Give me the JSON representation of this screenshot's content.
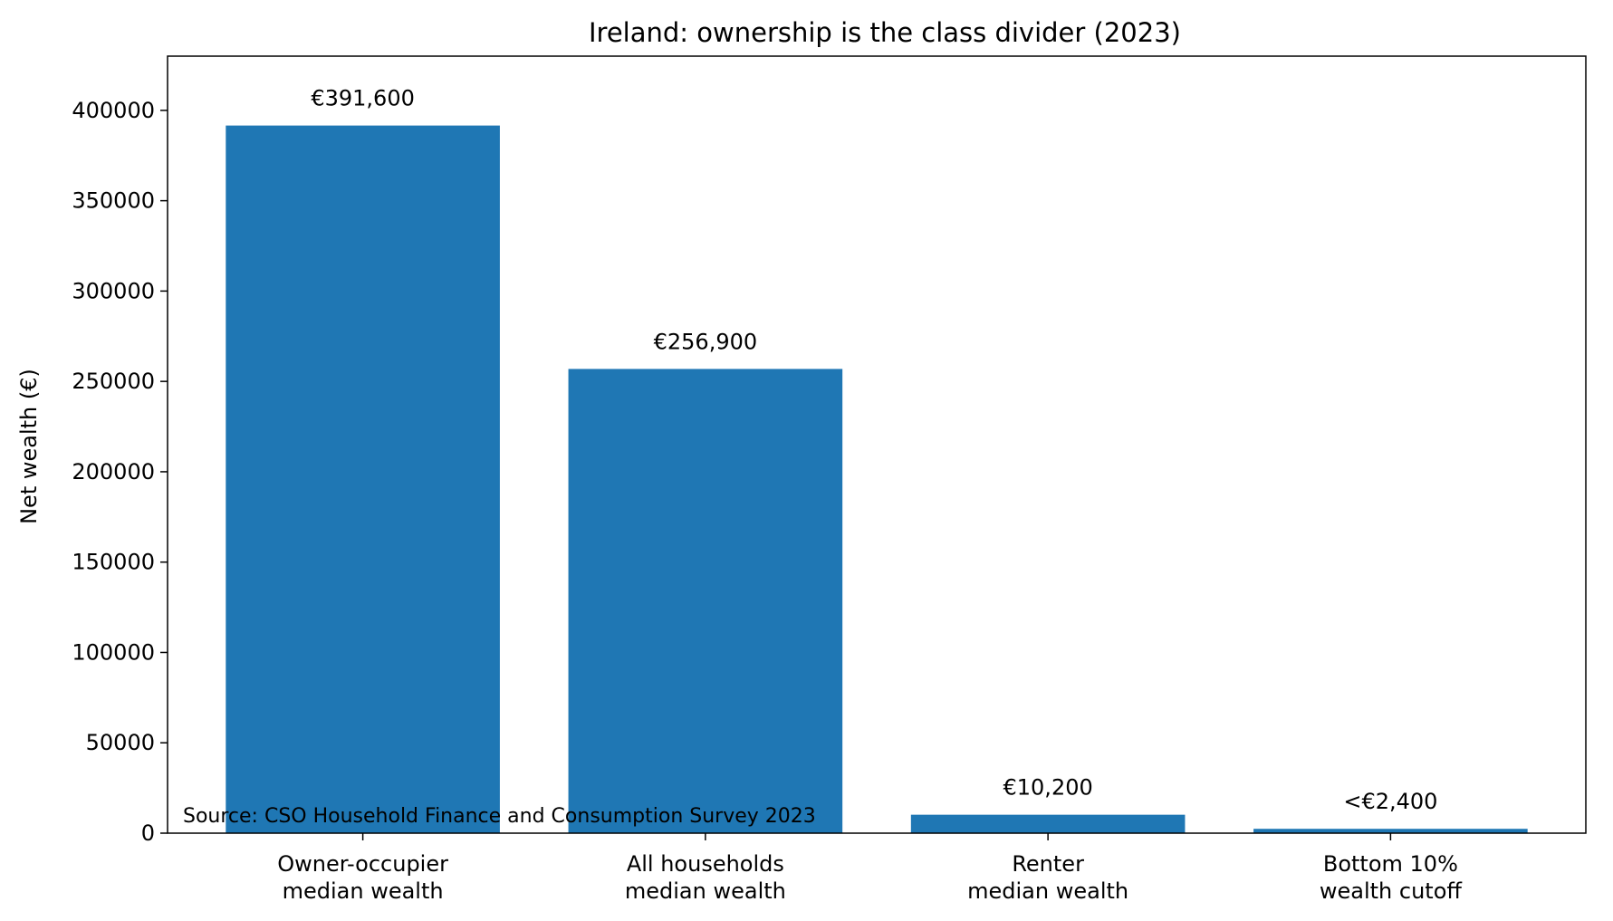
{
  "chart_data": {
    "type": "bar",
    "title": "Ireland: ownership is the class divider (2023)",
    "ylabel": "Net wealth (€)",
    "xlabel": "",
    "ylim": [
      0,
      430000
    ],
    "yticks": [
      0,
      50000,
      100000,
      150000,
      200000,
      250000,
      300000,
      350000,
      400000
    ],
    "categories": [
      [
        "Owner-occupier",
        "median wealth"
      ],
      [
        "All households",
        "median wealth"
      ],
      [
        "Renter",
        "median wealth"
      ],
      [
        "Bottom 10%",
        "wealth cutoff"
      ]
    ],
    "values": [
      391600,
      256900,
      10200,
      2400
    ],
    "data_labels": [
      "€391,600",
      "€256,900",
      "€10,200",
      "<€2,400"
    ],
    "bar_color": "#1f77b4",
    "grid": false,
    "annotation": "Source: CSO Household Finance and Consumption Survey 2023"
  }
}
